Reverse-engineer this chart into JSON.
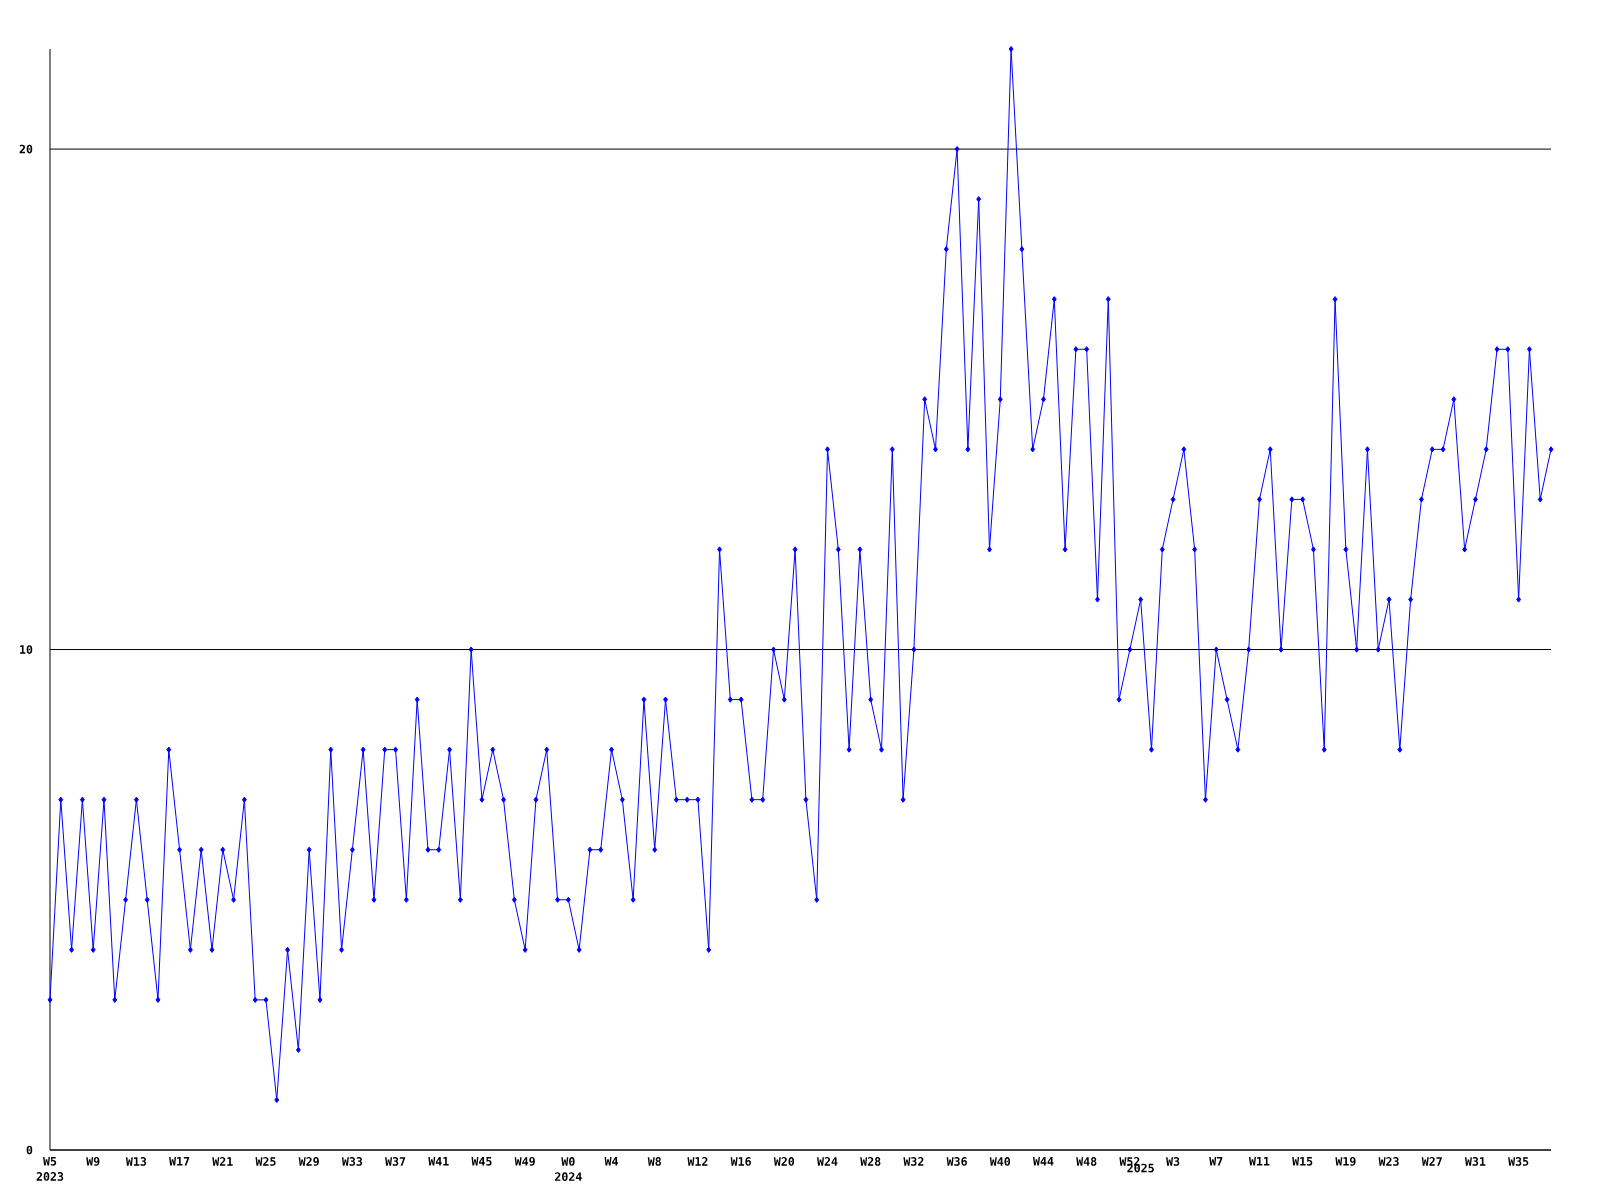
{
  "chart_data": {
    "type": "line",
    "color": "#0000ff",
    "marker": "diamond",
    "line_style": "solid",
    "grid": "y",
    "categories": [
      "W5\n2023",
      null,
      null,
      null,
      "W9",
      null,
      null,
      null,
      "W13",
      null,
      null,
      null,
      "W17",
      null,
      null,
      null,
      "W21",
      null,
      null,
      null,
      "W25",
      null,
      null,
      null,
      "W29",
      null,
      null,
      null,
      "W33",
      null,
      null,
      null,
      "W37",
      null,
      null,
      null,
      "W41",
      null,
      null,
      null,
      "W45",
      null,
      null,
      null,
      "W49",
      null,
      null,
      null,
      "W0\n2024",
      null,
      null,
      null,
      "W4",
      null,
      null,
      null,
      "W8",
      null,
      null,
      null,
      "W12",
      null,
      null,
      null,
      "W16",
      null,
      null,
      null,
      "W20",
      null,
      null,
      null,
      "W24",
      null,
      null,
      null,
      "W28",
      null,
      null,
      null,
      "W32",
      null,
      null,
      null,
      "W36",
      null,
      null,
      null,
      "W40",
      null,
      null,
      null,
      "W44",
      null,
      null,
      null,
      "W48",
      null,
      null,
      null,
      "W52",
      "\n2025",
      null,
      null,
      "W3",
      null,
      null,
      null,
      "W7",
      null,
      null,
      null,
      "W11",
      null,
      null,
      null,
      "W15",
      null,
      null,
      null,
      "W19",
      null,
      null,
      null,
      "W23",
      null,
      null,
      null,
      "W27",
      null,
      null,
      null,
      "W31",
      null,
      null,
      null,
      "W35",
      null,
      null,
      null
    ],
    "values": [
      3,
      7,
      4,
      7,
      4,
      7,
      3,
      5,
      7,
      5,
      3,
      8,
      6,
      4,
      6,
      4,
      6,
      5,
      7,
      3,
      3,
      1,
      4,
      2,
      6,
      3,
      8,
      4,
      6,
      8,
      5,
      8,
      8,
      5,
      9,
      6,
      6,
      8,
      5,
      10,
      7,
      8,
      7,
      5,
      4,
      7,
      8,
      5,
      5,
      4,
      6,
      6,
      8,
      7,
      5,
      9,
      6,
      9,
      7,
      7,
      7,
      4,
      12,
      9,
      9,
      7,
      7,
      10,
      9,
      12,
      7,
      5,
      14,
      12,
      8,
      12,
      9,
      8,
      14,
      7,
      10,
      15,
      14,
      18,
      20,
      14,
      19,
      12,
      15,
      22,
      18,
      14,
      15,
      17,
      12,
      16,
      16,
      11,
      17,
      9,
      10,
      11,
      8,
      12,
      13,
      14,
      12,
      7,
      10,
      9,
      8,
      10,
      13,
      14,
      10,
      13,
      13,
      12,
      8,
      17,
      12,
      10,
      14,
      10,
      11,
      8,
      11,
      13,
      14,
      14,
      15,
      12,
      13,
      14,
      16,
      16,
      11,
      16,
      13,
      14
    ],
    "ylim": [
      0,
      22
    ],
    "yticks": [
      0,
      10,
      20
    ]
  }
}
